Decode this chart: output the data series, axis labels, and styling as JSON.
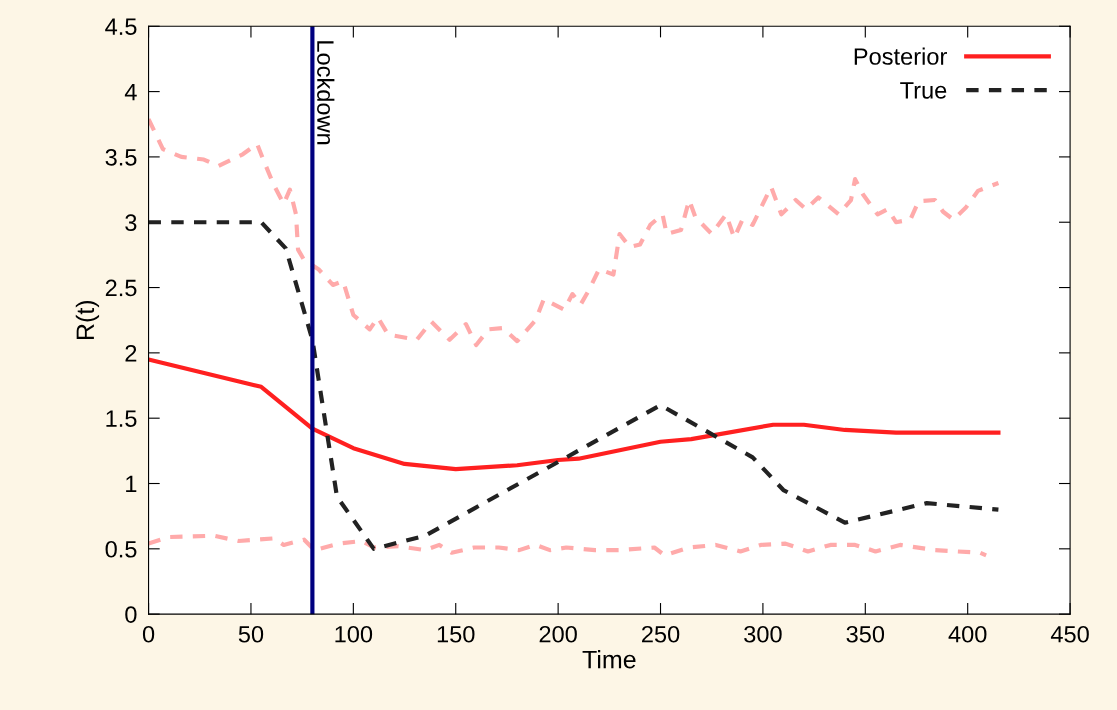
{
  "chart_data": {
    "type": "line",
    "xlabel": "Time",
    "ylabel": "R(t)",
    "xlim": [
      0,
      450
    ],
    "ylim": [
      0,
      4.5
    ],
    "xticks": [
      0,
      50,
      100,
      150,
      200,
      250,
      300,
      350,
      400,
      450
    ],
    "yticks": [
      0,
      0.5,
      1,
      1.5,
      2,
      2.5,
      3,
      3.5,
      4,
      4.5
    ],
    "grid": false,
    "legend": "top right",
    "marker": "none",
    "series": [
      {
        "color": "#ffaaaa",
        "line_style": "dashed",
        "x": [
          0,
          7,
          16,
          27,
          34,
          46,
          53,
          56,
          61,
          66,
          69,
          72,
          73,
          76,
          83,
          90,
          95,
          100,
          108,
          112,
          117,
          131,
          138,
          147,
          155,
          160,
          166,
          173,
          180,
          189,
          193,
          203,
          207,
          211,
          215,
          220,
          227,
          230,
          235,
          240,
          245,
          251,
          253,
          260,
          264,
          267,
          275,
          282,
          286,
          290,
          295,
          304,
          309,
          316,
          321,
          327,
          337,
          343,
          345,
          349,
          356,
          361,
          365,
          372,
          376,
          384,
          388,
          393,
          399,
          405,
          415
        ],
        "values": [
          3.79,
          3.56,
          3.5,
          3.48,
          3.43,
          3.52,
          3.6,
          3.48,
          3.29,
          3.14,
          3.25,
          3.06,
          2.79,
          2.71,
          2.64,
          2.52,
          2.55,
          2.29,
          2.18,
          2.27,
          2.14,
          2.1,
          2.24,
          2.1,
          2.22,
          2.06,
          2.18,
          2.19,
          2.09,
          2.25,
          2.41,
          2.33,
          2.45,
          2.37,
          2.48,
          2.64,
          2.6,
          2.91,
          2.81,
          2.83,
          2.98,
          3.06,
          2.91,
          2.94,
          3.17,
          3.04,
          2.91,
          3.06,
          2.88,
          3.02,
          2.98,
          3.27,
          3.06,
          3.17,
          3.1,
          3.19,
          3.06,
          3.17,
          3.33,
          3.21,
          3.06,
          3.1,
          3.0,
          3.02,
          3.16,
          3.17,
          3.08,
          3.02,
          3.11,
          3.24,
          3.3
        ]
      },
      {
        "color": "#ffaaaa",
        "line_style": "dashed",
        "x": [
          0,
          10,
          32,
          44,
          61,
          66,
          76,
          81,
          93,
          104,
          110,
          122,
          135,
          142,
          148,
          159,
          171,
          181,
          189,
          196,
          204,
          218,
          230,
          247,
          252,
          264,
          277,
          289,
          299,
          311,
          322,
          333,
          345,
          355,
          367,
          384,
          406,
          409
        ],
        "values": [
          0.54,
          0.59,
          0.6,
          0.56,
          0.58,
          0.53,
          0.57,
          0.49,
          0.54,
          0.56,
          0.51,
          0.52,
          0.49,
          0.53,
          0.47,
          0.51,
          0.51,
          0.49,
          0.53,
          0.49,
          0.51,
          0.49,
          0.49,
          0.51,
          0.45,
          0.51,
          0.53,
          0.48,
          0.53,
          0.54,
          0.48,
          0.53,
          0.53,
          0.48,
          0.53,
          0.49,
          0.47,
          0.45
        ]
      },
      {
        "name": "Posterior",
        "color": "#ff2020",
        "line_style": "solid",
        "x": [
          0,
          55,
          80,
          100,
          125,
          150,
          180,
          200,
          210,
          250,
          265,
          305,
          320,
          340,
          365,
          415
        ],
        "values": [
          1.95,
          1.74,
          1.42,
          1.27,
          1.15,
          1.11,
          1.14,
          1.18,
          1.19,
          1.32,
          1.34,
          1.45,
          1.45,
          1.41,
          1.39,
          1.39
        ]
      },
      {
        "name": "True",
        "color": "#222222",
        "line_style": "dashed",
        "x": [
          0,
          55,
          67,
          80,
          92,
          110,
          135,
          250,
          295,
          310,
          340,
          380,
          415
        ],
        "values": [
          3.0,
          3.0,
          2.8,
          2.1,
          0.9,
          0.5,
          0.6,
          1.6,
          1.2,
          0.95,
          0.7,
          0.85,
          0.8
        ]
      }
    ],
    "ref_lines": [
      {
        "axis": "x",
        "value": 80,
        "label": "Lockdown",
        "color": "#000080",
        "line_style": "solid"
      }
    ]
  }
}
